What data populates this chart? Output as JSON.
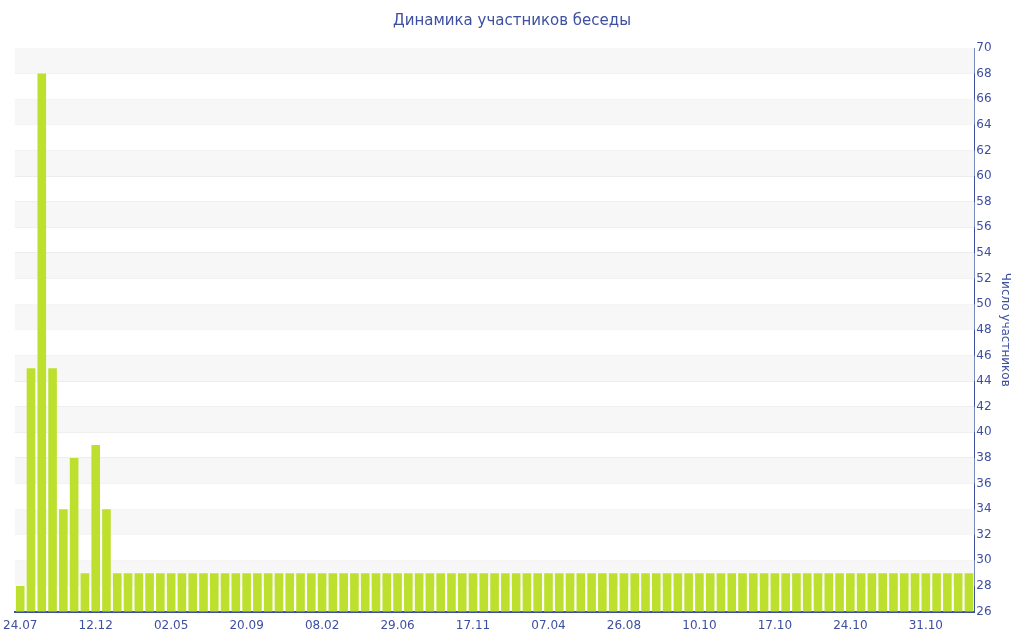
{
  "chart_data": {
    "type": "bar",
    "title": "Динамика участников беседы",
    "ylabel": "Число участников",
    "categories": [
      "24.07",
      null,
      null,
      null,
      null,
      null,
      null,
      "12.12",
      null,
      null,
      null,
      null,
      null,
      null,
      "02.05",
      null,
      null,
      null,
      null,
      null,
      null,
      "20.09",
      null,
      null,
      null,
      null,
      null,
      null,
      "08.02",
      null,
      null,
      null,
      null,
      null,
      null,
      "29.06",
      null,
      null,
      null,
      null,
      null,
      null,
      "17.11",
      null,
      null,
      null,
      null,
      null,
      null,
      "07.04",
      null,
      null,
      null,
      null,
      null,
      null,
      "26.08",
      null,
      null,
      null,
      null,
      null,
      null,
      "10.10",
      null,
      null,
      null,
      null,
      null,
      null,
      "17.10",
      null,
      null,
      null,
      null,
      null,
      null,
      "24.10",
      null,
      null,
      null,
      null,
      null,
      null,
      "31.10",
      null,
      null,
      null,
      null
    ],
    "values": [
      28,
      45,
      68,
      45,
      34,
      38,
      29,
      39,
      34,
      29,
      29,
      29,
      29,
      29,
      29,
      29,
      29,
      29,
      29,
      29,
      29,
      29,
      29,
      29,
      29,
      29,
      29,
      29,
      29,
      29,
      29,
      29,
      29,
      29,
      29,
      29,
      29,
      29,
      29,
      29,
      29,
      29,
      29,
      29,
      29,
      29,
      29,
      29,
      29,
      29,
      29,
      29,
      29,
      29,
      29,
      29,
      29,
      29,
      29,
      29,
      29,
      29,
      29,
      29,
      29,
      29,
      29,
      29,
      29,
      29,
      29,
      29,
      29,
      29,
      29,
      29,
      29,
      29,
      29,
      29,
      29,
      29,
      29,
      29,
      29,
      29,
      29,
      29,
      29
    ],
    "color": "#bde02f",
    "ylim": [
      26,
      70
    ],
    "yticks": [
      26,
      28,
      30,
      32,
      34,
      36,
      38,
      40,
      42,
      44,
      46,
      48,
      50,
      52,
      54,
      56,
      58,
      60,
      62,
      64,
      66,
      68,
      70
    ],
    "grid": "y",
    "legend": false
  }
}
